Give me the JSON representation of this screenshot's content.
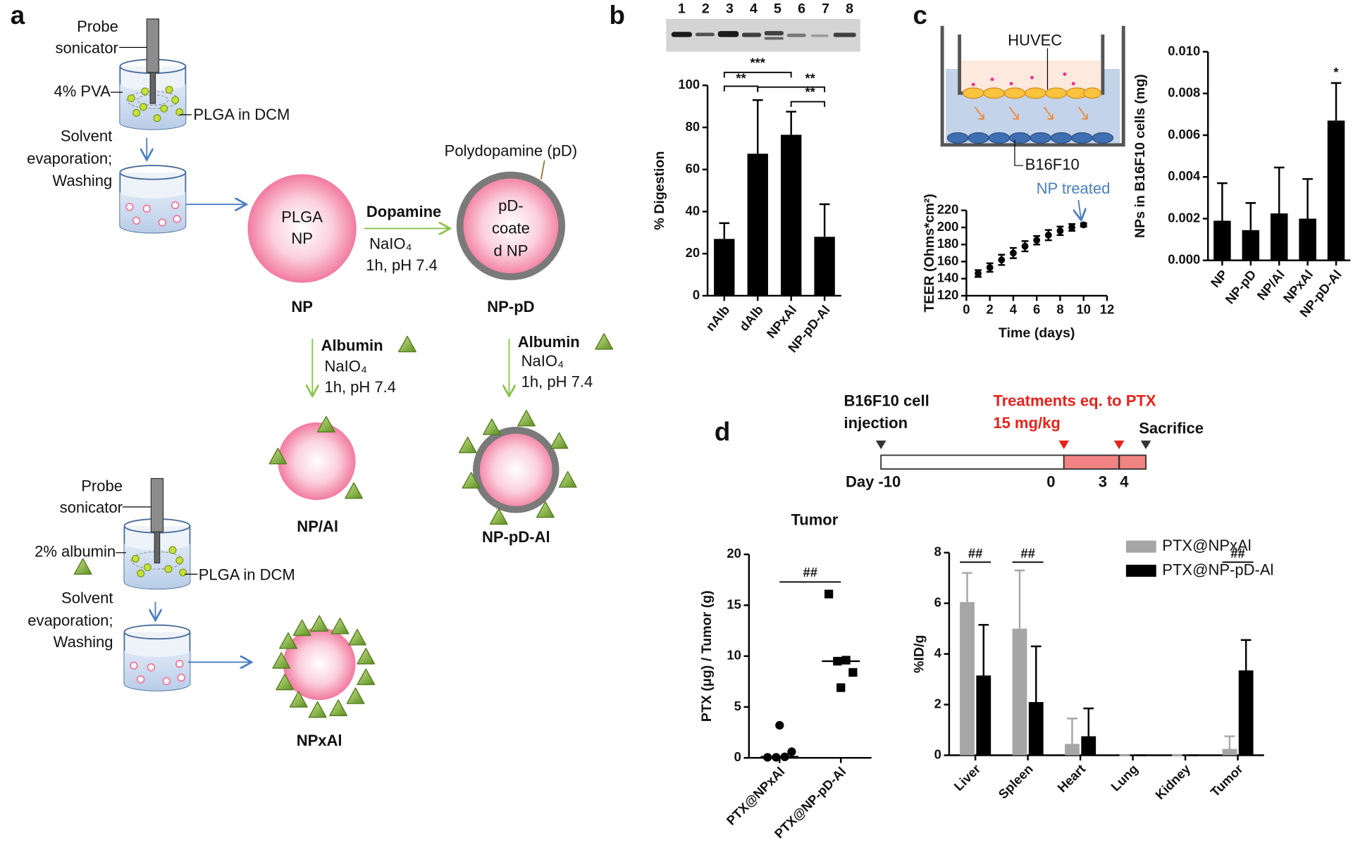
{
  "panel_labels": [
    "a",
    "b",
    "c",
    "d"
  ],
  "diagram": {
    "synthesis": {
      "probe_top": [
        "Probe",
        "sonicator"
      ],
      "pva": "4% PVA",
      "plga_top": "PLGA in DCM",
      "evap_top": [
        "Solvent",
        "evaporation;",
        "Washing"
      ],
      "plga_np": [
        "PLGA",
        "NP"
      ],
      "dopamine": "Dopamine",
      "naio4_1": "NaIO₄",
      "cond_1": "1h, pH 7.4",
      "polydopamine": "Polydopamine (pD)",
      "pd_np": [
        "pD-",
        "coate",
        "d NP"
      ],
      "np": "NP",
      "np_pd": "NP-pD",
      "albumin_1": "Albumin",
      "naio4_2": "NaIO₄",
      "cond_2": "1h, pH 7.4",
      "albumin_2": "Albumin",
      "naio4_3": "NaIO₄",
      "cond_3": "1h, pH 7.4",
      "np_al": "NP/Al",
      "np_pd_al": "NP-pD-Al",
      "probe_bottom": [
        "Probe",
        "sonicator"
      ],
      "albumin_pct": "2% albumin",
      "plga_bottom": "PLGA in DCM",
      "evap_bottom": [
        "Solvent",
        "evaporation;",
        "Washing"
      ],
      "npxal": "NPxAl"
    },
    "gel_lanes": [
      "1",
      "2",
      "3",
      "4",
      "5",
      "6",
      "7",
      "8"
    ],
    "transwell": {
      "huvec": "HUVEC",
      "b16f10": "B16F10"
    },
    "timeline": {
      "injection": [
        "B16F10 cell",
        "injection"
      ],
      "treatment": [
        "Treatments eq. to PTX",
        "15 mg/kg"
      ],
      "sacrifice": "Sacrifice",
      "days": [
        "Day -10",
        "0",
        "3",
        "4"
      ]
    }
  },
  "chart_data": [
    {
      "type": "bar",
      "categories": [
        "nAlb",
        "dAlb",
        "NPxAl",
        "NP-pD-Al"
      ],
      "values": [
        27,
        67.5,
        76.5,
        28
      ],
      "errors": [
        7.5,
        25.5,
        11,
        15.5
      ],
      "color": "#000000",
      "ylim": [
        0,
        100
      ],
      "yticks": [
        0,
        20,
        40,
        60,
        80,
        100
      ],
      "ylabel": "% Digestion",
      "annotations": [
        "***",
        "**",
        "**",
        "**"
      ]
    },
    {
      "type": "scatter",
      "x": [
        1,
        2,
        3,
        4,
        5,
        6,
        7,
        8,
        9,
        10
      ],
      "values": [
        146,
        153,
        162,
        170,
        178,
        185,
        191,
        196,
        200,
        203
      ],
      "errors": [
        4,
        5,
        6,
        6,
        6,
        5,
        6,
        5,
        4,
        2
      ],
      "color": "#000000",
      "xlim": [
        0,
        12
      ],
      "xticks": [
        0,
        2,
        4,
        6,
        8,
        10,
        12
      ],
      "ylim": [
        120,
        220
      ],
      "yticks": [
        120,
        140,
        160,
        180,
        200,
        220
      ],
      "xlabel": "Time (days)",
      "ylabel": "TEER (Ohms*cm²)",
      "annotations": [
        "NP treated"
      ]
    },
    {
      "type": "bar",
      "categories": [
        "NP",
        "NP-pD",
        "NP/Al",
        "NPxAl",
        "NP-pD-Al"
      ],
      "values": [
        0.0019,
        0.00145,
        0.00225,
        0.002,
        0.0067
      ],
      "errors": [
        0.0018,
        0.0013,
        0.0022,
        0.0019,
        0.0018
      ],
      "color": "#000000",
      "ylim": [
        0,
        0.01
      ],
      "yticks": [
        {
          "value": 0,
          "label": "0.000"
        },
        {
          "value": 0.002,
          "label": "0.002"
        },
        {
          "value": 0.004,
          "label": "0.004"
        },
        {
          "value": 0.006,
          "label": "0.006"
        },
        {
          "value": 0.008,
          "label": "0.008"
        },
        {
          "value": 0.01,
          "label": "0.010"
        }
      ],
      "ylabel": "NPs in B16F10 cells (mg)",
      "annotations": [
        "*"
      ]
    },
    {
      "type": "strip",
      "title": "Tumor",
      "categories": [
        "PTX@NPxAl",
        "PTX@NP-pD-Al"
      ],
      "points": [
        [
          0.05,
          0.05,
          0.1,
          0.6,
          3.2
        ],
        [
          16.1,
          9.5,
          9.6,
          8.4,
          6.9
        ]
      ],
      "medians": [
        0.1,
        9.5
      ],
      "color": "#000000",
      "ylim": [
        0,
        20
      ],
      "yticks": [
        0,
        5,
        10,
        15,
        20
      ],
      "ylabel": "PTX (μg) / Tumor (g)",
      "annotations": [
        "##"
      ]
    },
    {
      "type": "bar",
      "categories": [
        "Liver",
        "Spleen",
        "Heart",
        "Lung",
        "Kidney",
        "Tumor"
      ],
      "series": [
        {
          "name": "PTX@NPxAl",
          "color": "#a6a6a6",
          "values": [
            6.05,
            5.0,
            0.45,
            0,
            0,
            0.25
          ],
          "errors": [
            1.15,
            2.3,
            1.0,
            0,
            0,
            0.5
          ]
        },
        {
          "name": "PTX@NP-pD-Al",
          "color": "#000000",
          "values": [
            3.15,
            2.1,
            0.75,
            0,
            0,
            3.35
          ],
          "errors": [
            2.0,
            2.2,
            1.1,
            0,
            0,
            1.2
          ]
        }
      ],
      "ylim": [
        0,
        8
      ],
      "yticks": [
        0,
        2,
        4,
        6,
        8
      ],
      "ylabel": "%ID/g",
      "legend": "top-right",
      "annotations": [
        "##",
        "##",
        "##"
      ]
    }
  ]
}
